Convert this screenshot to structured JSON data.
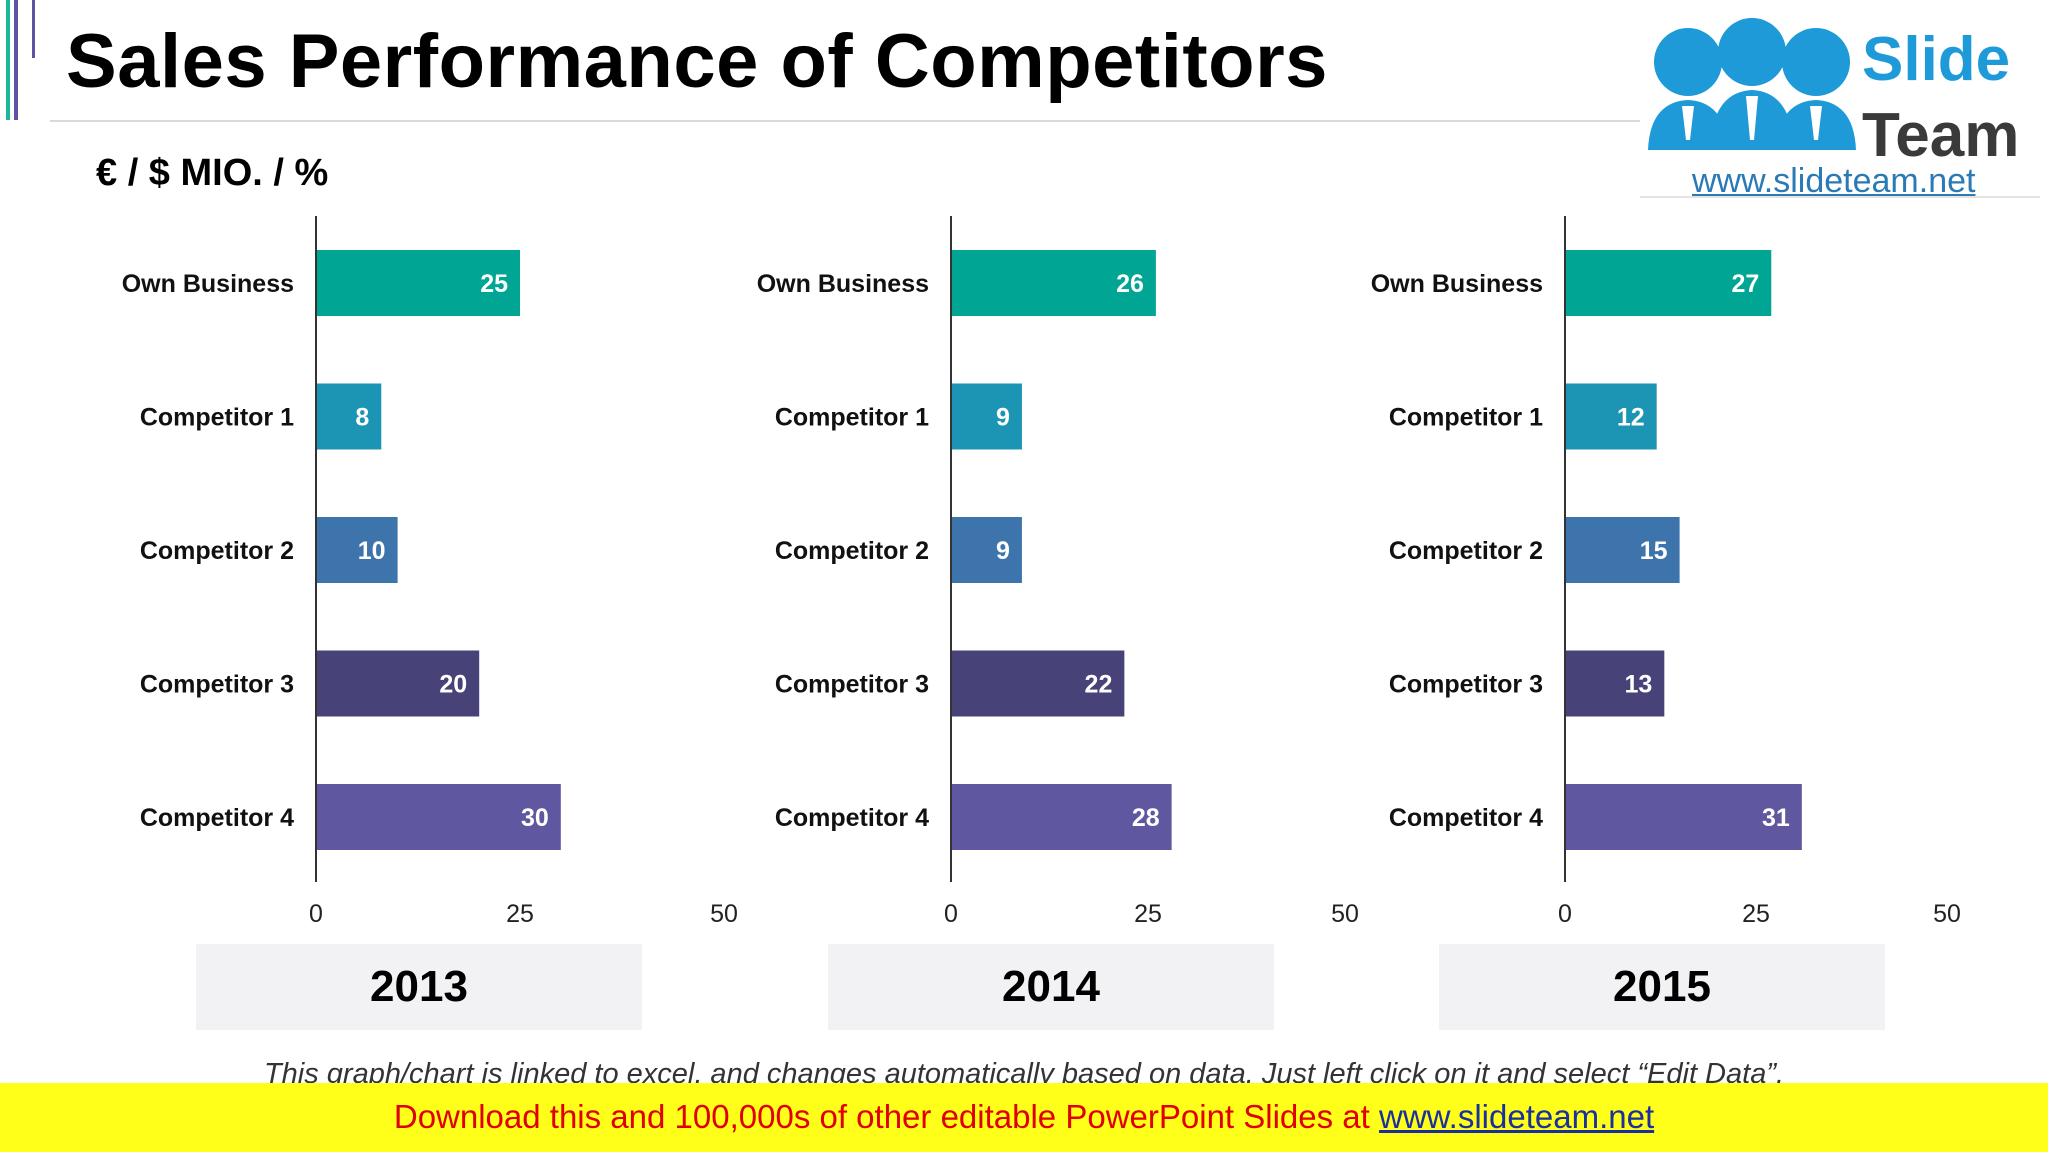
{
  "header": {
    "title": "Sales Performance of Competitors",
    "units": "€ / $ MIO. / %"
  },
  "logo": {
    "word1": "Slide",
    "word2": "Team",
    "url": "www.slideteam.net"
  },
  "colors": {
    "own_business": "#00a693",
    "competitor_1": "#1b95b3",
    "competitor_2": "#3c74ab",
    "competitor_3": "#474278",
    "competitor_4": "#5f58a0",
    "accent_green": "#1fb597",
    "accent_purple": "#5b55a3"
  },
  "chart_data": [
    {
      "type": "bar",
      "orientation": "horizontal",
      "title": "2013",
      "categories": [
        "Own Business",
        "Competitor 1",
        "Competitor 2",
        "Competitor 3",
        "Competitor 4"
      ],
      "values": [
        25,
        8,
        10,
        20,
        30
      ],
      "xlim": [
        0,
        50
      ],
      "xticks": [
        0,
        25,
        50
      ],
      "grid": false,
      "legend": "none"
    },
    {
      "type": "bar",
      "orientation": "horizontal",
      "title": "2014",
      "categories": [
        "Own Business",
        "Competitor 1",
        "Competitor 2",
        "Competitor 3",
        "Competitor 4"
      ],
      "values": [
        26,
        9,
        9,
        22,
        28
      ],
      "xlim": [
        0,
        50
      ],
      "xticks": [
        0,
        25,
        50
      ],
      "grid": false,
      "legend": "none"
    },
    {
      "type": "bar",
      "orientation": "horizontal",
      "title": "2015",
      "categories": [
        "Own Business",
        "Competitor 1",
        "Competitor 2",
        "Competitor 3",
        "Competitor 4"
      ],
      "values": [
        27,
        12,
        15,
        13,
        31
      ],
      "xlim": [
        0,
        50
      ],
      "xticks": [
        0,
        25,
        50
      ],
      "grid": false,
      "legend": "none"
    }
  ],
  "footer": {
    "note": "This graph/chart is linked to excel, and changes automatically based on data. Just left click on it and select “Edit Data”.",
    "banner_text": "Download this and 100,000s of other editable PowerPoint Slides at ",
    "banner_url": "www.slideteam.net"
  }
}
